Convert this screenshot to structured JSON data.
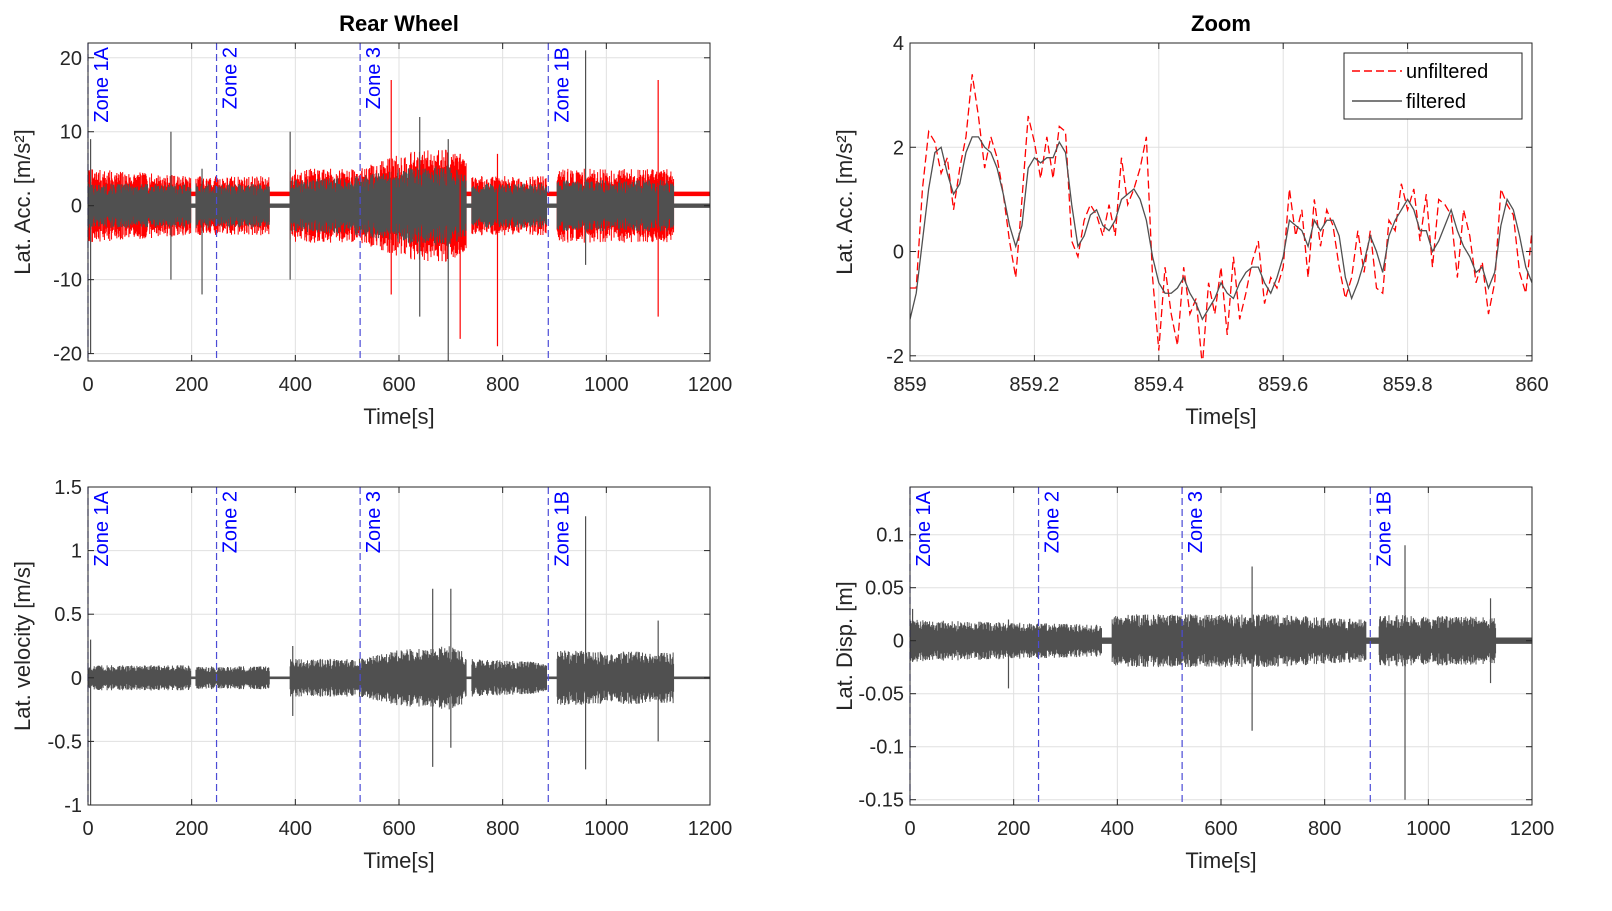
{
  "colors": {
    "unfiltered": "#ff0000",
    "filtered": "#505050",
    "zone_line": "#4b4bd6",
    "zone_text": "#0000ff",
    "grid": "#e0e0e0",
    "axis": "#262626"
  },
  "chart_data": [
    {
      "id": "acc",
      "type": "line",
      "title": "Rear Wheel",
      "xlabel": "Time[s]",
      "ylabel": "Lat. Acc. [m/s²]",
      "xlim": [
        0,
        1200
      ],
      "ylim": [
        -21,
        22
      ],
      "xticks": [
        0,
        200,
        400,
        600,
        800,
        1000,
        1200
      ],
      "xtick_labels": [
        "0",
        "200",
        "400",
        "600",
        "800",
        "1000",
        "1200"
      ],
      "yticks": [
        -20,
        -10,
        0,
        10,
        20
      ],
      "ytick_labels": [
        "-20",
        "-10",
        "0",
        "10",
        "20"
      ],
      "grid": true,
      "zones": [
        {
          "x": 0,
          "label": "Zone 1A"
        },
        {
          "x": 248,
          "label": "Zone 2"
        },
        {
          "x": 525,
          "label": "Zone 3"
        },
        {
          "x": 888,
          "label": "Zone 1B"
        }
      ],
      "envelope": {
        "segments": [
          [
            0,
            198
          ],
          [
            208,
            350
          ],
          [
            390,
            730
          ],
          [
            740,
            885
          ],
          [
            905,
            1130
          ]
        ],
        "unfiltered_amplitude": [
          {
            "x": 0,
            "v": 5
          },
          {
            "x": 198,
            "v": 4
          },
          {
            "x": 208,
            "v": 4
          },
          {
            "x": 350,
            "v": 4
          },
          {
            "x": 390,
            "v": 5
          },
          {
            "x": 525,
            "v": 5
          },
          {
            "x": 600,
            "v": 7
          },
          {
            "x": 700,
            "v": 8
          },
          {
            "x": 730,
            "v": 6
          },
          {
            "x": 740,
            "v": 4
          },
          {
            "x": 885,
            "v": 4
          },
          {
            "x": 905,
            "v": 5
          },
          {
            "x": 1130,
            "v": 5
          }
        ],
        "filtered_amplitude": [
          {
            "x": 0,
            "v": 3
          },
          {
            "x": 198,
            "v": 3
          },
          {
            "x": 208,
            "v": 3
          },
          {
            "x": 350,
            "v": 3
          },
          {
            "x": 390,
            "v": 3.5
          },
          {
            "x": 525,
            "v": 4
          },
          {
            "x": 600,
            "v": 5
          },
          {
            "x": 700,
            "v": 5.5
          },
          {
            "x": 730,
            "v": 4
          },
          {
            "x": 740,
            "v": 3
          },
          {
            "x": 885,
            "v": 3
          },
          {
            "x": 905,
            "v": 3.5
          },
          {
            "x": 1130,
            "v": 3.5
          }
        ],
        "unfiltered_offset_quiet": 1.6,
        "quiet_amplitude": 0.3,
        "spikes": [
          {
            "x": 5,
            "lo": -20,
            "hi": 9,
            "series": "filtered"
          },
          {
            "x": 160,
            "lo": -10,
            "hi": 10,
            "series": "filtered"
          },
          {
            "x": 220,
            "lo": -12,
            "hi": 5,
            "series": "filtered"
          },
          {
            "x": 390,
            "lo": -10,
            "hi": 10,
            "series": "filtered"
          },
          {
            "x": 585,
            "lo": -12,
            "hi": 17,
            "series": "unfiltered"
          },
          {
            "x": 640,
            "lo": -15,
            "hi": 12,
            "series": "filtered"
          },
          {
            "x": 695,
            "lo": -21,
            "hi": 9,
            "series": "filtered"
          },
          {
            "x": 718,
            "lo": -18,
            "hi": 7,
            "series": "unfiltered"
          },
          {
            "x": 790,
            "lo": -19,
            "hi": 7,
            "series": "unfiltered"
          },
          {
            "x": 960,
            "lo": -8,
            "hi": 21,
            "series": "filtered"
          },
          {
            "x": 1100,
            "lo": -15,
            "hi": 17,
            "series": "unfiltered"
          }
        ]
      }
    },
    {
      "id": "zoom",
      "type": "line",
      "title": "Zoom",
      "xlabel": "Time[s]",
      "ylabel": "Lat. Acc. [m/s²]",
      "xlim": [
        859,
        860
      ],
      "ylim": [
        -2.1,
        4
      ],
      "xticks": [
        859,
        859.2,
        859.4,
        859.6,
        859.8,
        860
      ],
      "xtick_labels": [
        "859",
        "859.2",
        "859.4",
        "859.6",
        "859.8",
        "860"
      ],
      "yticks": [
        -2,
        0,
        2,
        4
      ],
      "ytick_labels": [
        "-2",
        "0",
        "2",
        "4"
      ],
      "grid": true,
      "legend": {
        "position": "top-right",
        "entries": [
          "unfiltered",
          "filtered"
        ]
      },
      "series": [
        {
          "name": "unfiltered",
          "style": "dashed",
          "color": "#ff0000",
          "x": [
            859.0,
            859.01,
            859.02,
            859.03,
            859.04,
            859.05,
            859.06,
            859.07,
            859.08,
            859.09,
            859.1,
            859.11,
            859.12,
            859.13,
            859.14,
            859.15,
            859.16,
            859.17,
            859.18,
            859.19,
            859.2,
            859.21,
            859.22,
            859.23,
            859.24,
            859.25,
            859.26,
            859.27,
            859.28,
            859.29,
            859.3,
            859.31,
            859.32,
            859.33,
            859.34,
            859.35,
            859.36,
            859.37,
            859.38,
            859.39,
            859.4,
            859.41,
            859.42,
            859.43,
            859.44,
            859.45,
            859.46,
            859.47,
            859.48,
            859.49,
            859.5,
            859.51,
            859.52,
            859.53,
            859.54,
            859.55,
            859.56,
            859.57,
            859.58,
            859.59,
            859.6,
            859.61,
            859.62,
            859.63,
            859.64,
            859.65,
            859.66,
            859.67,
            859.68,
            859.69,
            859.7,
            859.71,
            859.72,
            859.73,
            859.74,
            859.75,
            859.76,
            859.77,
            859.78,
            859.79,
            859.8,
            859.81,
            859.82,
            859.83,
            859.84,
            859.85,
            859.86,
            859.87,
            859.88,
            859.89,
            859.9,
            859.91,
            859.92,
            859.93,
            859.94,
            859.95,
            859.96,
            859.97,
            859.98,
            859.99,
            860.0
          ],
          "y": [
            -0.7,
            -0.7,
            1.2,
            2.3,
            2.1,
            1.5,
            1.8,
            0.8,
            1.6,
            2.2,
            3.4,
            2.6,
            1.6,
            2.2,
            1.8,
            1.1,
            0.2,
            -0.5,
            1.0,
            2.6,
            2.1,
            1.4,
            2.2,
            1.4,
            2.4,
            2.3,
            0.2,
            -0.1,
            0.6,
            0.9,
            0.7,
            0.3,
            0.9,
            0.3,
            1.8,
            0.9,
            1.2,
            1.6,
            2.2,
            -0.5,
            -1.9,
            -0.3,
            -1.2,
            -1.8,
            -0.3,
            -1.2,
            -0.9,
            -2.2,
            -0.6,
            -1.2,
            -0.3,
            -1.6,
            -0.1,
            -1.3,
            -0.8,
            -0.2,
            0.2,
            -1.0,
            -0.5,
            -0.7,
            -0.3,
            1.2,
            0.3,
            0.8,
            -0.5,
            1.0,
            0.1,
            0.8,
            0.5,
            -0.3,
            -0.9,
            -0.5,
            0.4,
            -0.4,
            0.4,
            -0.7,
            -0.8,
            0.6,
            0.4,
            1.3,
            0.8,
            1.2,
            0.2,
            1.1,
            -0.3,
            1.0,
            0.9,
            0.7,
            -0.5,
            0.8,
            0.3,
            -0.6,
            -0.2,
            -1.2,
            -0.6,
            1.2,
            0.9,
            0.7,
            -0.4,
            -0.8,
            0.4
          ],
          "note_x_step": "x every 0.01s"
        },
        {
          "name": "filtered",
          "style": "solid",
          "color": "#505050",
          "x": [
            859.0,
            859.01,
            859.02,
            859.03,
            859.04,
            859.05,
            859.06,
            859.07,
            859.08,
            859.09,
            859.1,
            859.11,
            859.12,
            859.13,
            859.14,
            859.15,
            859.16,
            859.17,
            859.18,
            859.19,
            859.2,
            859.21,
            859.22,
            859.23,
            859.24,
            859.25,
            859.26,
            859.27,
            859.28,
            859.29,
            859.3,
            859.31,
            859.32,
            859.33,
            859.34,
            859.35,
            859.36,
            859.37,
            859.38,
            859.39,
            859.4,
            859.41,
            859.42,
            859.43,
            859.44,
            859.45,
            859.46,
            859.47,
            859.48,
            859.49,
            859.5,
            859.51,
            859.52,
            859.53,
            859.54,
            859.55,
            859.56,
            859.57,
            859.58,
            859.59,
            859.6,
            859.61,
            859.62,
            859.63,
            859.64,
            859.65,
            859.66,
            859.67,
            859.68,
            859.69,
            859.7,
            859.71,
            859.72,
            859.73,
            859.74,
            859.75,
            859.76,
            859.77,
            859.78,
            859.79,
            859.8,
            859.81,
            859.82,
            859.83,
            859.84,
            859.85,
            859.86,
            859.87,
            859.88,
            859.89,
            859.9,
            859.91,
            859.92,
            859.93,
            859.94,
            859.95,
            859.96,
            859.97,
            859.98,
            859.99,
            860.0
          ],
          "y": [
            -1.3,
            -0.8,
            0.2,
            1.2,
            1.9,
            2.0,
            1.5,
            1.1,
            1.3,
            1.9,
            2.2,
            2.2,
            2.0,
            1.9,
            1.6,
            1.1,
            0.5,
            0.1,
            0.5,
            1.6,
            1.8,
            1.7,
            1.8,
            1.8,
            2.1,
            1.9,
            0.9,
            0.1,
            0.3,
            0.7,
            0.8,
            0.5,
            0.4,
            0.6,
            1.0,
            1.1,
            1.2,
            1.0,
            0.6,
            -0.1,
            -0.6,
            -0.8,
            -0.8,
            -0.7,
            -0.5,
            -0.8,
            -1.0,
            -1.3,
            -1.1,
            -0.9,
            -0.6,
            -0.8,
            -0.9,
            -0.6,
            -0.4,
            -0.3,
            -0.3,
            -0.6,
            -0.8,
            -0.5,
            -0.1,
            0.6,
            0.5,
            0.4,
            0.1,
            0.6,
            0.4,
            0.6,
            0.6,
            0.3,
            -0.5,
            -0.9,
            -0.6,
            -0.2,
            0.3,
            0.0,
            -0.4,
            0.3,
            0.6,
            0.8,
            1.0,
            0.8,
            0.4,
            0.4,
            0.0,
            0.2,
            0.5,
            0.8,
            0.4,
            0.1,
            -0.1,
            -0.4,
            -0.3,
            -0.7,
            -0.4,
            0.5,
            1.0,
            0.8,
            0.3,
            -0.3,
            -0.6
          ]
        }
      ]
    },
    {
      "id": "vel",
      "type": "line",
      "title": "",
      "xlabel": "Time[s]",
      "ylabel": "Lat. velocity [m/s]",
      "xlim": [
        0,
        1200
      ],
      "ylim": [
        -1,
        1.5
      ],
      "xticks": [
        0,
        200,
        400,
        600,
        800,
        1000,
        1200
      ],
      "xtick_labels": [
        "0",
        "200",
        "400",
        "600",
        "800",
        "1000",
        "1200"
      ],
      "yticks": [
        -1,
        -0.5,
        0,
        0.5,
        1,
        1.5
      ],
      "ytick_labels": [
        "-1",
        "-0.5",
        "0",
        "0.5",
        "1",
        "1.5"
      ],
      "grid": true,
      "zones": [
        {
          "x": 0,
          "label": "Zone 1A"
        },
        {
          "x": 248,
          "label": "Zone 2"
        },
        {
          "x": 525,
          "label": "Zone 3"
        },
        {
          "x": 888,
          "label": "Zone 1B"
        }
      ],
      "envelope": {
        "segments": [
          [
            0,
            198
          ],
          [
            208,
            350
          ],
          [
            390,
            730
          ],
          [
            740,
            885
          ],
          [
            905,
            1130
          ]
        ],
        "filtered_amplitude": [
          {
            "x": 0,
            "v": 0.1
          },
          {
            "x": 198,
            "v": 0.1
          },
          {
            "x": 208,
            "v": 0.09
          },
          {
            "x": 350,
            "v": 0.09
          },
          {
            "x": 390,
            "v": 0.15
          },
          {
            "x": 525,
            "v": 0.15
          },
          {
            "x": 600,
            "v": 0.22
          },
          {
            "x": 700,
            "v": 0.25
          },
          {
            "x": 730,
            "v": 0.2
          },
          {
            "x": 740,
            "v": 0.15
          },
          {
            "x": 885,
            "v": 0.12
          },
          {
            "x": 905,
            "v": 0.22
          },
          {
            "x": 1130,
            "v": 0.2
          }
        ],
        "quiet_amplitude": 0.01,
        "spikes": [
          {
            "x": 5,
            "lo": -1.0,
            "hi": 0.3,
            "series": "filtered"
          },
          {
            "x": 395,
            "lo": -0.3,
            "hi": 0.25,
            "series": "filtered"
          },
          {
            "x": 665,
            "lo": -0.7,
            "hi": 0.7,
            "series": "filtered"
          },
          {
            "x": 700,
            "lo": -0.55,
            "hi": 0.7,
            "series": "filtered"
          },
          {
            "x": 960,
            "lo": -0.72,
            "hi": 1.27,
            "series": "filtered"
          },
          {
            "x": 1100,
            "lo": -0.5,
            "hi": 0.45,
            "series": "filtered"
          }
        ]
      }
    },
    {
      "id": "disp",
      "type": "line",
      "title": "",
      "xlabel": "Time[s]",
      "ylabel": "Lat. Disp. [m]",
      "xlim": [
        0,
        1200
      ],
      "ylim": [
        -0.155,
        0.145
      ],
      "xticks": [
        0,
        200,
        400,
        600,
        800,
        1000,
        1200
      ],
      "xtick_labels": [
        "0",
        "200",
        "400",
        "600",
        "800",
        "1000",
        "1200"
      ],
      "yticks": [
        -0.15,
        -0.1,
        -0.05,
        0,
        0.05,
        0.1
      ],
      "ytick_labels": [
        "-0.15",
        "-0.1",
        "-0.05",
        "0",
        "0.05",
        "0.1"
      ],
      "grid": true,
      "zones": [
        {
          "x": 0,
          "label": "Zone 1A"
        },
        {
          "x": 248,
          "label": "Zone 2"
        },
        {
          "x": 525,
          "label": "Zone 3"
        },
        {
          "x": 888,
          "label": "Zone 1B"
        }
      ],
      "envelope": {
        "segments": [
          [
            0,
            370
          ],
          [
            390,
            880
          ],
          [
            905,
            1130
          ]
        ],
        "filtered_amplitude": [
          {
            "x": 0,
            "v": 0.02
          },
          {
            "x": 370,
            "v": 0.015
          },
          {
            "x": 390,
            "v": 0.025
          },
          {
            "x": 700,
            "v": 0.025
          },
          {
            "x": 880,
            "v": 0.02
          },
          {
            "x": 905,
            "v": 0.025
          },
          {
            "x": 1130,
            "v": 0.022
          }
        ],
        "quiet_amplitude": 0.003,
        "spikes": [
          {
            "x": 5,
            "lo": -0.02,
            "hi": 0.03,
            "series": "filtered"
          },
          {
            "x": 190,
            "lo": -0.045,
            "hi": 0.02,
            "series": "filtered"
          },
          {
            "x": 660,
            "lo": -0.085,
            "hi": 0.07,
            "series": "filtered"
          },
          {
            "x": 955,
            "lo": -0.15,
            "hi": 0.09,
            "series": "filtered"
          },
          {
            "x": 1120,
            "lo": -0.04,
            "hi": 0.04,
            "series": "filtered"
          }
        ]
      }
    }
  ]
}
